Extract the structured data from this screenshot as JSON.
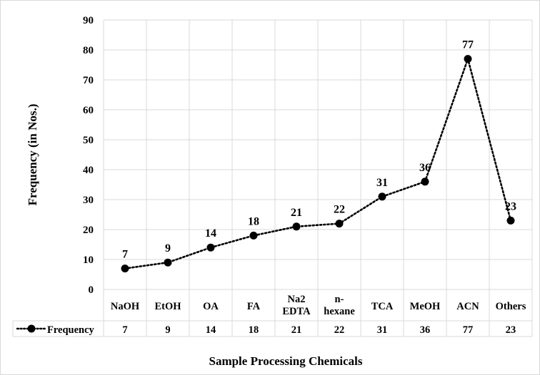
{
  "chart_data": {
    "type": "line",
    "title": "",
    "xlabel": "Sample Processing Chemicals",
    "ylabel": "Frequency (in Nos.)",
    "ylim": [
      0,
      90
    ],
    "ytick_step": 10,
    "grid": true,
    "legend": "data-table-left",
    "categories": [
      [
        "NaOH"
      ],
      [
        "EtOH"
      ],
      [
        "OA"
      ],
      [
        "FA"
      ],
      [
        "Na2",
        "EDTA"
      ],
      [
        "n-",
        "hexane"
      ],
      [
        "TCA"
      ],
      [
        "MeOH"
      ],
      [
        "ACN"
      ],
      [
        "Others"
      ]
    ],
    "series": [
      {
        "name": "Frequency",
        "values": [
          7,
          9,
          14,
          18,
          21,
          22,
          31,
          36,
          77,
          23
        ],
        "line_style": "dotted",
        "marker": "circle",
        "color": "#000000"
      }
    ]
  }
}
